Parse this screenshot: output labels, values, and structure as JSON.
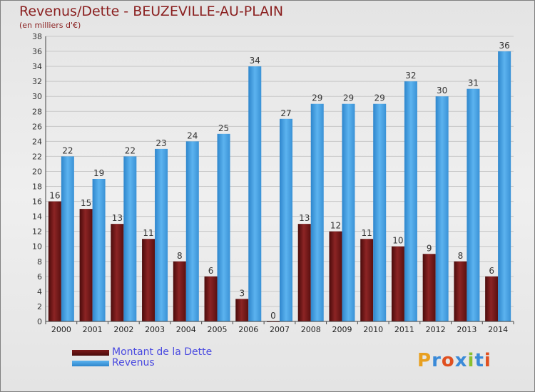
{
  "title": "Revenus/Dette - BEUZEVILLE-AU-PLAIN",
  "subtitle": "(en milliers d'€)",
  "legend": {
    "debt_label": "Montant de la Dette",
    "revenue_label": "Revenus"
  },
  "logo": "Proxiti",
  "colors": {
    "debt": "#7a1a1a",
    "revenue": "#4aa6e8",
    "title": "#8a1f1f",
    "legend_text": "#4a4ae0"
  },
  "chart_data": {
    "type": "bar",
    "title": "Revenus/Dette - BEUZEVILLE-AU-PLAIN",
    "ylabel": "(en milliers d'€)",
    "ylim": [
      0,
      38
    ],
    "ytick_step": 2,
    "categories": [
      "2000",
      "2001",
      "2002",
      "2003",
      "2004",
      "2005",
      "2006",
      "2007",
      "2008",
      "2009",
      "2010",
      "2011",
      "2012",
      "2013",
      "2014"
    ],
    "series": [
      {
        "name": "Montant de la Dette",
        "values": [
          16,
          15,
          13,
          11,
          8,
          6,
          3,
          0,
          13,
          12,
          11,
          10,
          9,
          8,
          6
        ]
      },
      {
        "name": "Revenus",
        "values": [
          22,
          19,
          22,
          23,
          24,
          25,
          34,
          27,
          29,
          29,
          29,
          32,
          30,
          31,
          36
        ]
      }
    ]
  }
}
